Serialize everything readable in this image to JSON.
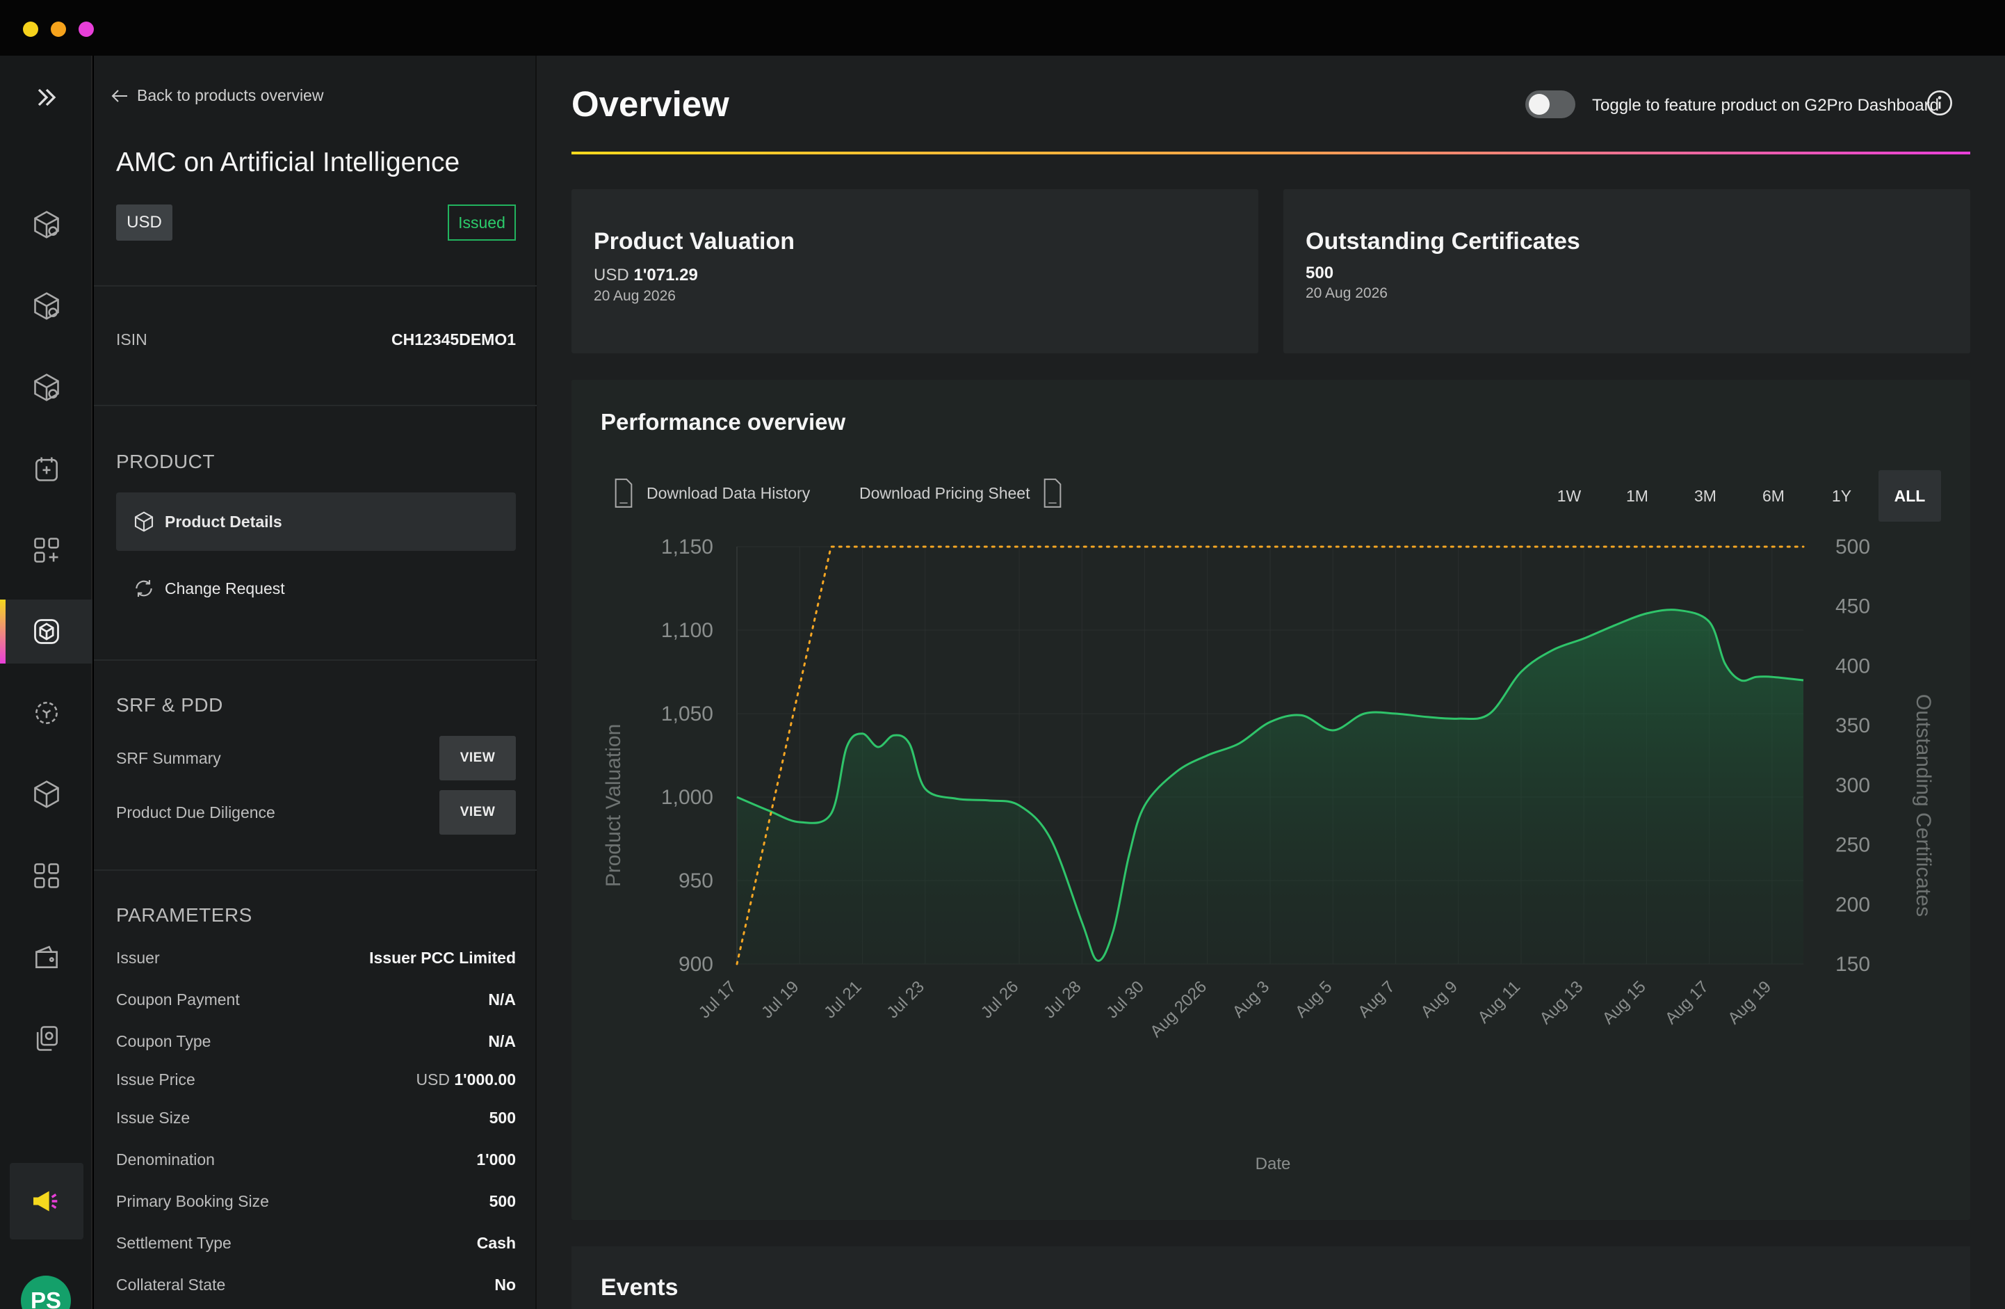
{
  "window": {
    "controls": [
      "close",
      "minimize",
      "maximize"
    ]
  },
  "rail": {
    "items": [
      "expand-icon",
      "box-icon-1",
      "box-icon-2",
      "box-icon-3",
      "calendar-add-icon",
      "apps-add-icon",
      "product-icon",
      "scan-icon",
      "cube-icon",
      "grid-icon",
      "wallet-icon",
      "copy-icon"
    ],
    "active_item": "product-icon",
    "announce_icon": "megaphone-icon",
    "user_initials": "PS"
  },
  "panel": {
    "back_label": "Back to products overview",
    "product_title": "AMC on Artificial Intelligence",
    "currency": "USD",
    "status": "Issued",
    "isin": {
      "label": "ISIN",
      "value": "CH12345DEMO1"
    },
    "product_section": {
      "heading": "PRODUCT",
      "items": [
        {
          "label": "Product Details",
          "active": true
        },
        {
          "label": "Change Request",
          "active": false
        }
      ]
    },
    "srf_section": {
      "heading": "SRF & PDD",
      "items": [
        {
          "label": "SRF Summary",
          "button": "VIEW"
        },
        {
          "label": "Product Due Diligence",
          "button": "VIEW"
        }
      ]
    },
    "parameters": {
      "heading": "PARAMETERS",
      "rows": [
        {
          "label": "Issuer",
          "value": "Issuer PCC Limited"
        },
        {
          "label": "Coupon Payment",
          "value": "N/A"
        },
        {
          "label": "Coupon Type",
          "value": "N/A"
        },
        {
          "label": "Issue Price",
          "currency": "USD",
          "value": "1'000.00"
        },
        {
          "label": "Issue Size",
          "value": "500"
        },
        {
          "label": "Denomination",
          "value": "1'000"
        },
        {
          "label": "Primary Booking Size",
          "value": "500"
        },
        {
          "label": "Settlement Type",
          "value": "Cash"
        },
        {
          "label": "Collateral State",
          "value": "No"
        }
      ]
    }
  },
  "main": {
    "title": "Overview",
    "toggle_label": "Toggle to feature product on G2Pro Dashboard",
    "toggle_on": false,
    "accent_gradient": [
      "#f5d81e",
      "#f5a34a",
      "#e83fd9"
    ],
    "cards": [
      {
        "title": "Product Valuation",
        "currency": "USD",
        "value": "1'071.29",
        "date": "20 Aug 2026"
      },
      {
        "title": "Outstanding Certificates",
        "currency": "",
        "value": "500",
        "date": "20 Aug 2026"
      }
    ],
    "performance": {
      "title": "Performance overview",
      "download_history": "Download Data History",
      "download_pricing": "Download Pricing Sheet",
      "ranges": [
        "1W",
        "1M",
        "3M",
        "6M",
        "1Y",
        "ALL"
      ],
      "active_range": "ALL"
    },
    "events_title": "Events"
  },
  "chart_data": {
    "type": "area",
    "xlabel": "Date",
    "ylabel": "Product Valuation",
    "y2label": "Outstanding Certificates",
    "ylim": [
      900,
      1150
    ],
    "yticks": [
      900,
      950,
      1000,
      1050,
      1100,
      1150
    ],
    "y2lim": [
      150,
      500
    ],
    "y2ticks": [
      150,
      200,
      250,
      300,
      350,
      400,
      450,
      500
    ],
    "grid": true,
    "x_tick_labels": [
      "Jul 17",
      "Jul 19",
      "Jul 21",
      "Jul 23",
      "Jul 26",
      "Jul 28",
      "Jul 30",
      "Aug 2026",
      "Aug 3",
      "Aug 5",
      "Aug 7",
      "Aug 9",
      "Aug 11",
      "Aug 13",
      "Aug 15",
      "Aug 17",
      "Aug 19"
    ],
    "x_tick_days": [
      0,
      2,
      4,
      6,
      9,
      11,
      13,
      15,
      17,
      19,
      21,
      23,
      25,
      27,
      29,
      31,
      33
    ],
    "series": [
      {
        "name": "Product Valuation",
        "axis": "left",
        "color": "#2fc46a",
        "fill": true,
        "x_days": [
          0,
          1,
          2,
          3,
          3.5,
          4,
          4.5,
          5,
          5.5,
          6,
          7,
          8,
          9,
          10,
          11,
          11.5,
          12,
          12.5,
          13,
          14,
          15,
          16,
          17,
          18,
          19,
          20,
          21,
          22,
          23,
          24,
          25,
          26,
          27,
          28,
          29,
          30,
          31,
          31.5,
          32,
          32.5,
          33,
          34
        ],
        "values": [
          1000,
          992,
          985,
          990,
          1030,
          1038,
          1030,
          1037,
          1032,
          1005,
          999,
          998,
          995,
          975,
          925,
          902,
          920,
          965,
          995,
          1015,
          1025,
          1032,
          1045,
          1049,
          1040,
          1050,
          1050,
          1048,
          1047,
          1050,
          1075,
          1088,
          1095,
          1103,
          1110,
          1112,
          1105,
          1080,
          1070,
          1072,
          1072,
          1070
        ]
      },
      {
        "name": "Outstanding Certificates",
        "axis": "right",
        "color": "#f5a623",
        "dashed": true,
        "x_days": [
          0,
          3,
          34
        ],
        "values": [
          150,
          500,
          500
        ]
      }
    ]
  }
}
